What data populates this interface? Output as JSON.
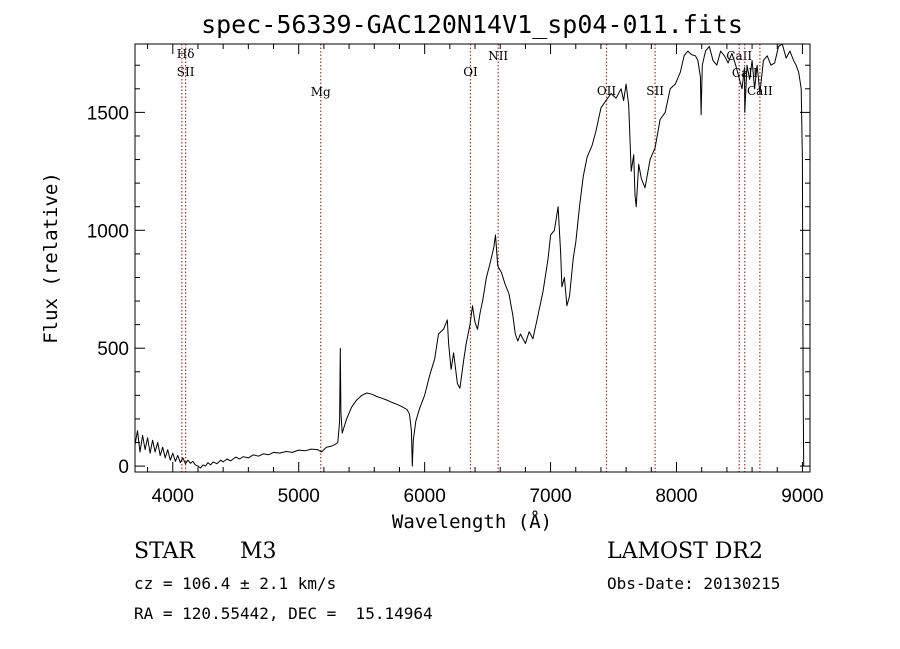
{
  "chart_data": {
    "type": "line",
    "title": "spec-56339-GAC120N14V1_sp04-011.fits",
    "xlabel": "Wavelength (Å)",
    "ylabel": "Flux (relative)",
    "xlim": [
      3700,
      9060
    ],
    "ylim": [
      -25,
      1790
    ],
    "x_ticks": [
      4000,
      5000,
      6000,
      7000,
      8000,
      9000
    ],
    "y_ticks": [
      0,
      500,
      1000,
      1500
    ],
    "grid": false,
    "series": [
      {
        "values": [
          [
            3700,
            90
          ],
          [
            3720,
            150
          ],
          [
            3740,
            60
          ],
          [
            3760,
            130
          ],
          [
            3780,
            70
          ],
          [
            3800,
            120
          ],
          [
            3820,
            55
          ],
          [
            3840,
            110
          ],
          [
            3860,
            60
          ],
          [
            3880,
            100
          ],
          [
            3900,
            45
          ],
          [
            3920,
            80
          ],
          [
            3940,
            35
          ],
          [
            3960,
            70
          ],
          [
            3980,
            25
          ],
          [
            4000,
            55
          ],
          [
            4020,
            20
          ],
          [
            4040,
            45
          ],
          [
            4060,
            15
          ],
          [
            4080,
            35
          ],
          [
            4100,
            10
          ],
          [
            4120,
            25
          ],
          [
            4140,
            12
          ],
          [
            4160,
            20
          ],
          [
            4180,
            5
          ],
          [
            4200,
            0
          ],
          [
            4220,
            -8
          ],
          [
            4240,
            5
          ],
          [
            4260,
            0
          ],
          [
            4280,
            15
          ],
          [
            4300,
            5
          ],
          [
            4320,
            18
          ],
          [
            4350,
            10
          ],
          [
            4380,
            25
          ],
          [
            4400,
            18
          ],
          [
            4430,
            30
          ],
          [
            4460,
            22
          ],
          [
            4500,
            38
          ],
          [
            4530,
            30
          ],
          [
            4560,
            40
          ],
          [
            4600,
            35
          ],
          [
            4640,
            48
          ],
          [
            4680,
            42
          ],
          [
            4720,
            52
          ],
          [
            4760,
            48
          ],
          [
            4800,
            58
          ],
          [
            4850,
            55
          ],
          [
            4900,
            62
          ],
          [
            4950,
            58
          ],
          [
            5000,
            68
          ],
          [
            5050,
            65
          ],
          [
            5100,
            72
          ],
          [
            5150,
            70
          ],
          [
            5180,
            60
          ],
          [
            5220,
            80
          ],
          [
            5260,
            85
          ],
          [
            5290,
            92
          ],
          [
            5310,
            100
          ],
          [
            5325,
            190
          ],
          [
            5330,
            500
          ],
          [
            5335,
            230
          ],
          [
            5345,
            140
          ],
          [
            5380,
            200
          ],
          [
            5420,
            250
          ],
          [
            5460,
            280
          ],
          [
            5500,
            300
          ],
          [
            5540,
            310
          ],
          [
            5580,
            305
          ],
          [
            5620,
            295
          ],
          [
            5660,
            288
          ],
          [
            5700,
            280
          ],
          [
            5740,
            270
          ],
          [
            5780,
            262
          ],
          [
            5820,
            252
          ],
          [
            5860,
            240
          ],
          [
            5880,
            220
          ],
          [
            5895,
            150
          ],
          [
            5902,
            0
          ],
          [
            5910,
            110
          ],
          [
            5930,
            190
          ],
          [
            5960,
            245
          ],
          [
            6000,
            300
          ],
          [
            6040,
            385
          ],
          [
            6080,
            455
          ],
          [
            6110,
            560
          ],
          [
            6150,
            580
          ],
          [
            6180,
            620
          ],
          [
            6190,
            520
          ],
          [
            6210,
            410
          ],
          [
            6230,
            480
          ],
          [
            6260,
            350
          ],
          [
            6280,
            330
          ],
          [
            6310,
            450
          ],
          [
            6330,
            520
          ],
          [
            6360,
            600
          ],
          [
            6380,
            680
          ],
          [
            6400,
            610
          ],
          [
            6420,
            580
          ],
          [
            6440,
            650
          ],
          [
            6460,
            700
          ],
          [
            6490,
            800
          ],
          [
            6520,
            860
          ],
          [
            6550,
            930
          ],
          [
            6563,
            980
          ],
          [
            6580,
            850
          ],
          [
            6610,
            820
          ],
          [
            6640,
            770
          ],
          [
            6670,
            730
          ],
          [
            6700,
            640
          ],
          [
            6720,
            560
          ],
          [
            6740,
            530
          ],
          [
            6760,
            560
          ],
          [
            6800,
            520
          ],
          [
            6830,
            570
          ],
          [
            6860,
            540
          ],
          [
            6900,
            640
          ],
          [
            6940,
            740
          ],
          [
            6980,
            880
          ],
          [
            7000,
            980
          ],
          [
            7030,
            1000
          ],
          [
            7060,
            1100
          ],
          [
            7080,
            900
          ],
          [
            7090,
            760
          ],
          [
            7110,
            800
          ],
          [
            7130,
            680
          ],
          [
            7150,
            720
          ],
          [
            7180,
            880
          ],
          [
            7200,
            950
          ],
          [
            7230,
            1100
          ],
          [
            7260,
            1230
          ],
          [
            7290,
            1310
          ],
          [
            7330,
            1360
          ],
          [
            7360,
            1420
          ],
          [
            7400,
            1520
          ],
          [
            7440,
            1550
          ],
          [
            7480,
            1580
          ],
          [
            7520,
            1560
          ],
          [
            7560,
            1600
          ],
          [
            7580,
            1550
          ],
          [
            7600,
            1620
          ],
          [
            7620,
            1530
          ],
          [
            7640,
            1250
          ],
          [
            7660,
            1320
          ],
          [
            7670,
            1150
          ],
          [
            7680,
            1100
          ],
          [
            7700,
            1280
          ],
          [
            7720,
            1220
          ],
          [
            7750,
            1180
          ],
          [
            7790,
            1300
          ],
          [
            7830,
            1350
          ],
          [
            7870,
            1470
          ],
          [
            7910,
            1500
          ],
          [
            7950,
            1600
          ],
          [
            7990,
            1620
          ],
          [
            8030,
            1670
          ],
          [
            8060,
            1740
          ],
          [
            8090,
            1760
          ],
          [
            8120,
            1745
          ],
          [
            8150,
            1740
          ],
          [
            8170,
            1720
          ],
          [
            8190,
            1650
          ],
          [
            8195,
            1490
          ],
          [
            8205,
            1700
          ],
          [
            8230,
            1760
          ],
          [
            8260,
            1780
          ],
          [
            8290,
            1720
          ],
          [
            8320,
            1700
          ],
          [
            8350,
            1760
          ],
          [
            8380,
            1740
          ],
          [
            8410,
            1710
          ],
          [
            8440,
            1750
          ],
          [
            8470,
            1700
          ],
          [
            8500,
            1640
          ],
          [
            8520,
            1600
          ],
          [
            8540,
            1690
          ],
          [
            8542,
            1500
          ],
          [
            8560,
            1700
          ],
          [
            8580,
            1640
          ],
          [
            8600,
            1720
          ],
          [
            8620,
            1600
          ],
          [
            8640,
            1700
          ],
          [
            8662,
            1580
          ],
          [
            8690,
            1720
          ],
          [
            8720,
            1740
          ],
          [
            8750,
            1700
          ],
          [
            8780,
            1710
          ],
          [
            8810,
            1780
          ],
          [
            8840,
            1790
          ],
          [
            8870,
            1730
          ],
          [
            8900,
            1760
          ],
          [
            8930,
            1720
          ],
          [
            8950,
            1700
          ],
          [
            8970,
            1670
          ],
          [
            8990,
            1600
          ],
          [
            9000,
            1300
          ],
          [
            9005,
            350
          ],
          [
            9010,
            0
          ]
        ]
      }
    ],
    "reference_lines": [
      {
        "x": 4102,
        "labels": [
          "Hδ",
          "SII"
        ]
      },
      {
        "x": 4072,
        "labels": []
      },
      {
        "x": 5175,
        "labels": [
          "Mg"
        ]
      },
      {
        "x": 6364,
        "labels": [
          "OI"
        ]
      },
      {
        "x": 6584,
        "labels": [
          "NII"
        ]
      },
      {
        "x": 7444,
        "labels": [
          "OII"
        ]
      },
      {
        "x": 7830,
        "labels": [
          "SII"
        ]
      },
      {
        "x": 8498,
        "labels": [
          "CaII"
        ]
      },
      {
        "x": 8542,
        "labels": [
          "CaII"
        ]
      },
      {
        "x": 8662,
        "labels": [
          "CaII"
        ]
      }
    ]
  },
  "info": {
    "class_label": "STAR",
    "subclass_label": "M3",
    "survey_label": "LAMOST DR2",
    "redshift_text": "cz = 106.4 ± 2.1 km/s",
    "obs_date_text": "Obs-Date: 20130215",
    "coords_text": "RA = 120.55442, DEC =  15.14964"
  },
  "colors": {
    "spectrum": "#000000",
    "line_marker": "#b03030",
    "axes": "#000000",
    "background": "#ffffff"
  }
}
